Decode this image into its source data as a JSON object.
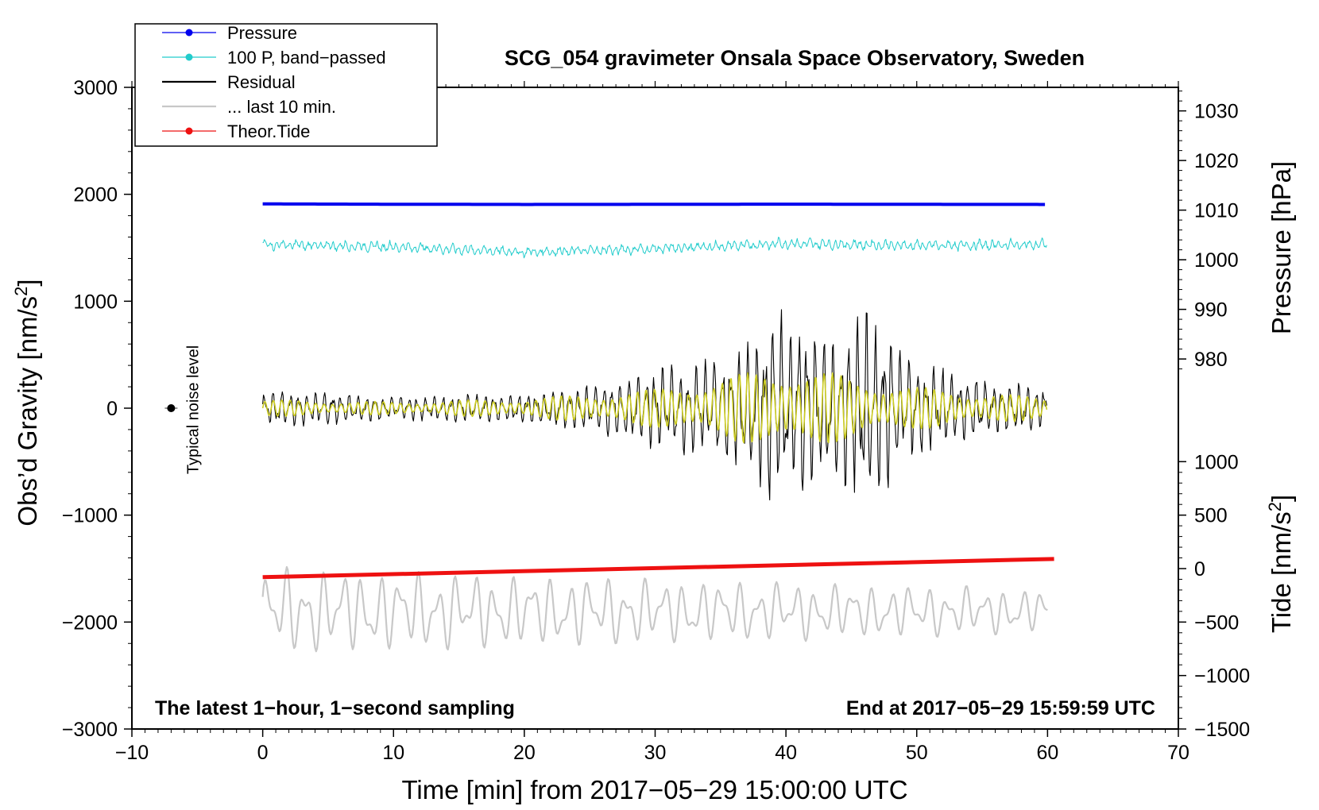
{
  "chart_data": {
    "type": "line",
    "title": "SCG_054 gravimeter Onsala Space Observatory, Sweden",
    "xlabel": "Time [min] from 2017−05−29 15:00:00 UTC",
    "ylabel": "Obs’d Gravity [nm/s²]",
    "ylabel_main": "Obs’d Gravity [nm/s",
    "ylabel_tail": "]",
    "pressure_label": "Pressure [hPa]",
    "tide_label_main": "Tide [nm/s",
    "tide_label_tail": "]",
    "superscript": "2",
    "xlim": [
      -10,
      70
    ],
    "ylim": [
      -3000,
      3000
    ],
    "x_ticks": [
      -10,
      0,
      10,
      20,
      30,
      40,
      50,
      60,
      70
    ],
    "x_tick_labels": [
      "−10",
      "0",
      "10",
      "20",
      "30",
      "40",
      "50",
      "60",
      "70"
    ],
    "y_ticks": [
      -3000,
      -2000,
      -1000,
      0,
      1000,
      2000,
      3000
    ],
    "y_tick_labels": [
      "−3000",
      "−2000",
      "−1000",
      "0",
      "1000",
      "2000",
      "3000"
    ],
    "pressure_axis": {
      "ticks": [
        980,
        990,
        1000,
        1010,
        1020,
        1030
      ],
      "labels": [
        "980",
        "990",
        "1000",
        "1010",
        "1020",
        "1030"
      ],
      "gravity_equiv": [
        [
          1030,
          2780
        ],
        [
          980,
          460
        ]
      ]
    },
    "tide_axis": {
      "ticks": [
        -1500,
        -1000,
        -500,
        0,
        500,
        1000
      ],
      "labels": [
        "−1500",
        "−1000",
        "−500",
        "0",
        "500",
        "1000"
      ],
      "gravity_equiv": [
        [
          1000,
          -500
        ],
        [
          -1500,
          -3000
        ]
      ]
    },
    "legend": [
      {
        "label": "Pressure",
        "color": "#0000ee",
        "marker": true
      },
      {
        "label": "100 P, band−passed",
        "color": "#22cccc",
        "marker": true
      },
      {
        "label": "Residual",
        "color": "#000000",
        "marker": false
      },
      {
        "label": "... last 10 min.",
        "color": "#c8c8c8",
        "marker": false
      },
      {
        "label": "Theor.Tide",
        "color": "#ee1111",
        "marker": true
      }
    ],
    "series": [
      {
        "name": "Pressure",
        "color": "#0000ee",
        "x": [
          0,
          10,
          20,
          30,
          40,
          50,
          60
        ],
        "values": [
          1910,
          1907,
          1905,
          1906,
          1908,
          1906,
          1905
        ],
        "y_units": "gravity-axis"
      },
      {
        "name": "100 P, band−passed",
        "color": "#22cccc",
        "x": [
          0,
          10,
          20,
          30,
          40,
          50,
          60
        ],
        "values": [
          1530,
          1510,
          1460,
          1490,
          1540,
          1520,
          1530
        ],
        "y_units": "gravity-axis"
      },
      {
        "name": "Residual",
        "color": "#000000",
        "x": [
          0,
          5,
          10,
          15,
          20,
          25,
          30,
          35,
          37.5,
          39,
          40,
          41,
          42.5,
          45,
          46.5,
          50,
          55,
          60
        ],
        "envelope": [
          200,
          180,
          120,
          150,
          160,
          260,
          420,
          550,
          700,
          1100,
          900,
          1050,
          700,
          900,
          1000,
          500,
          300,
          220
        ],
        "y_units": "gravity-axis"
      },
      {
        "name": "Residual (band-passed)",
        "color": "#cccc22",
        "x": [
          0,
          10,
          20,
          30,
          40,
          50,
          60
        ],
        "envelope": [
          80,
          60,
          90,
          180,
          400,
          200,
          100
        ],
        "y_units": "gravity-axis"
      },
      {
        "name": "... last 10 min.",
        "color": "#c8c8c8",
        "x": [
          0,
          60
        ],
        "center": -1900,
        "envelope": [
          400,
          200
        ],
        "y_units": "gravity-axis"
      },
      {
        "name": "Theor.Tide",
        "color": "#ee1111",
        "x": [
          0,
          60.5
        ],
        "values": [
          -1580,
          -1410
        ],
        "y_units": "gravity-axis"
      }
    ],
    "noise_marker": {
      "x": -7,
      "y": 0,
      "label": "Typical noise level"
    },
    "annotations": {
      "left": "The latest 1−hour, 1−second sampling",
      "right": "End at 2017−05−29 15:59:59 UTC"
    }
  }
}
